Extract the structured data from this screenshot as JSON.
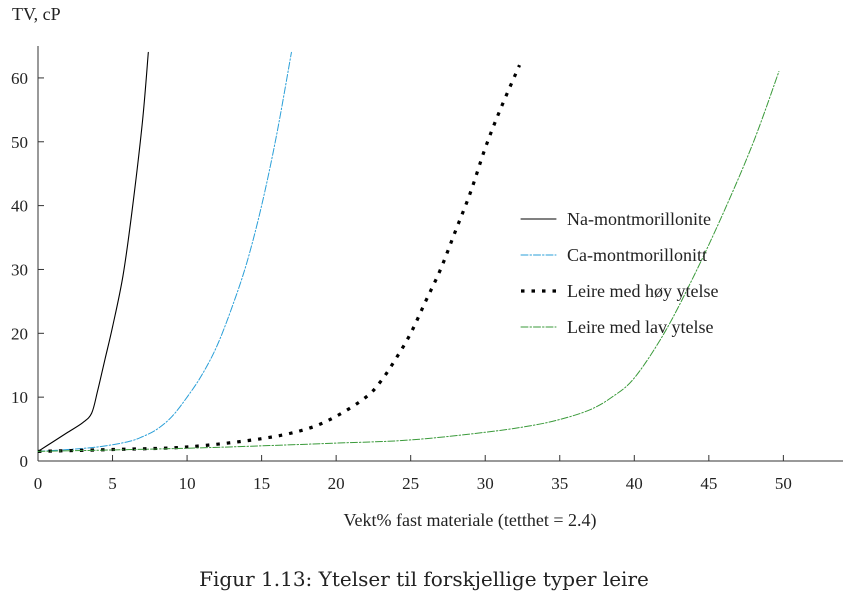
{
  "chart_data": {
    "type": "line",
    "ylabel": "TV, cP",
    "xlabel": "Vekt% fast materiale (tetthet = 2.4)",
    "xlim": [
      0,
      54
    ],
    "ylim": [
      0,
      65
    ],
    "xticks": [
      0,
      5,
      10,
      15,
      20,
      25,
      30,
      35,
      40,
      45,
      50
    ],
    "yticks": [
      0,
      10,
      20,
      30,
      40,
      50,
      60
    ],
    "grid": false,
    "legend_position": "right-center",
    "series": [
      {
        "name": "Na-montmorillonite",
        "color": "#000000",
        "style": "solid",
        "width": 1.1,
        "x": [
          0,
          1,
          2,
          3,
          3.6,
          4,
          4.5,
          5,
          5.7,
          6.3,
          7,
          7.4
        ],
        "y": [
          1.5,
          3,
          4.5,
          6,
          7.5,
          11,
          16,
          21,
          29,
          39,
          53,
          64
        ]
      },
      {
        "name": "Ca-montmorillonitt",
        "color": "#2a9fd8",
        "style": "dashdot",
        "width": 1.0,
        "x": [
          0,
          2,
          4,
          6,
          7,
          8,
          9,
          10,
          11,
          12,
          13,
          14,
          15,
          16,
          17
        ],
        "y": [
          1.5,
          1.8,
          2.2,
          3,
          3.8,
          5,
          7,
          10,
          13.5,
          18,
          24,
          31,
          40,
          51,
          64
        ]
      },
      {
        "name": "Leire med høy ytelse",
        "color": "#000000",
        "style": "dotted",
        "width": 3.2,
        "x": [
          0,
          5,
          10,
          15,
          18,
          20,
          22,
          23,
          24,
          25,
          26,
          27,
          28,
          29,
          30,
          31,
          32.3
        ],
        "y": [
          1.5,
          1.8,
          2.2,
          3.5,
          5,
          7,
          10,
          12.5,
          16,
          20,
          25,
          30,
          36,
          42,
          49,
          55,
          62
        ]
      },
      {
        "name": "Leire med lav ytelse",
        "color": "#3a9a3a",
        "style": "dashdot",
        "width": 1.0,
        "x": [
          0,
          10,
          20,
          25,
          30,
          33,
          35,
          37,
          38.5,
          40,
          42,
          44,
          46,
          48,
          49.7
        ],
        "y": [
          1.5,
          2,
          2.8,
          3.3,
          4.5,
          5.5,
          6.5,
          8,
          10,
          13,
          20,
          29,
          39,
          50,
          61
        ]
      }
    ]
  },
  "caption": "Figur 1.13: Ytelser til forskjellige typer leire"
}
